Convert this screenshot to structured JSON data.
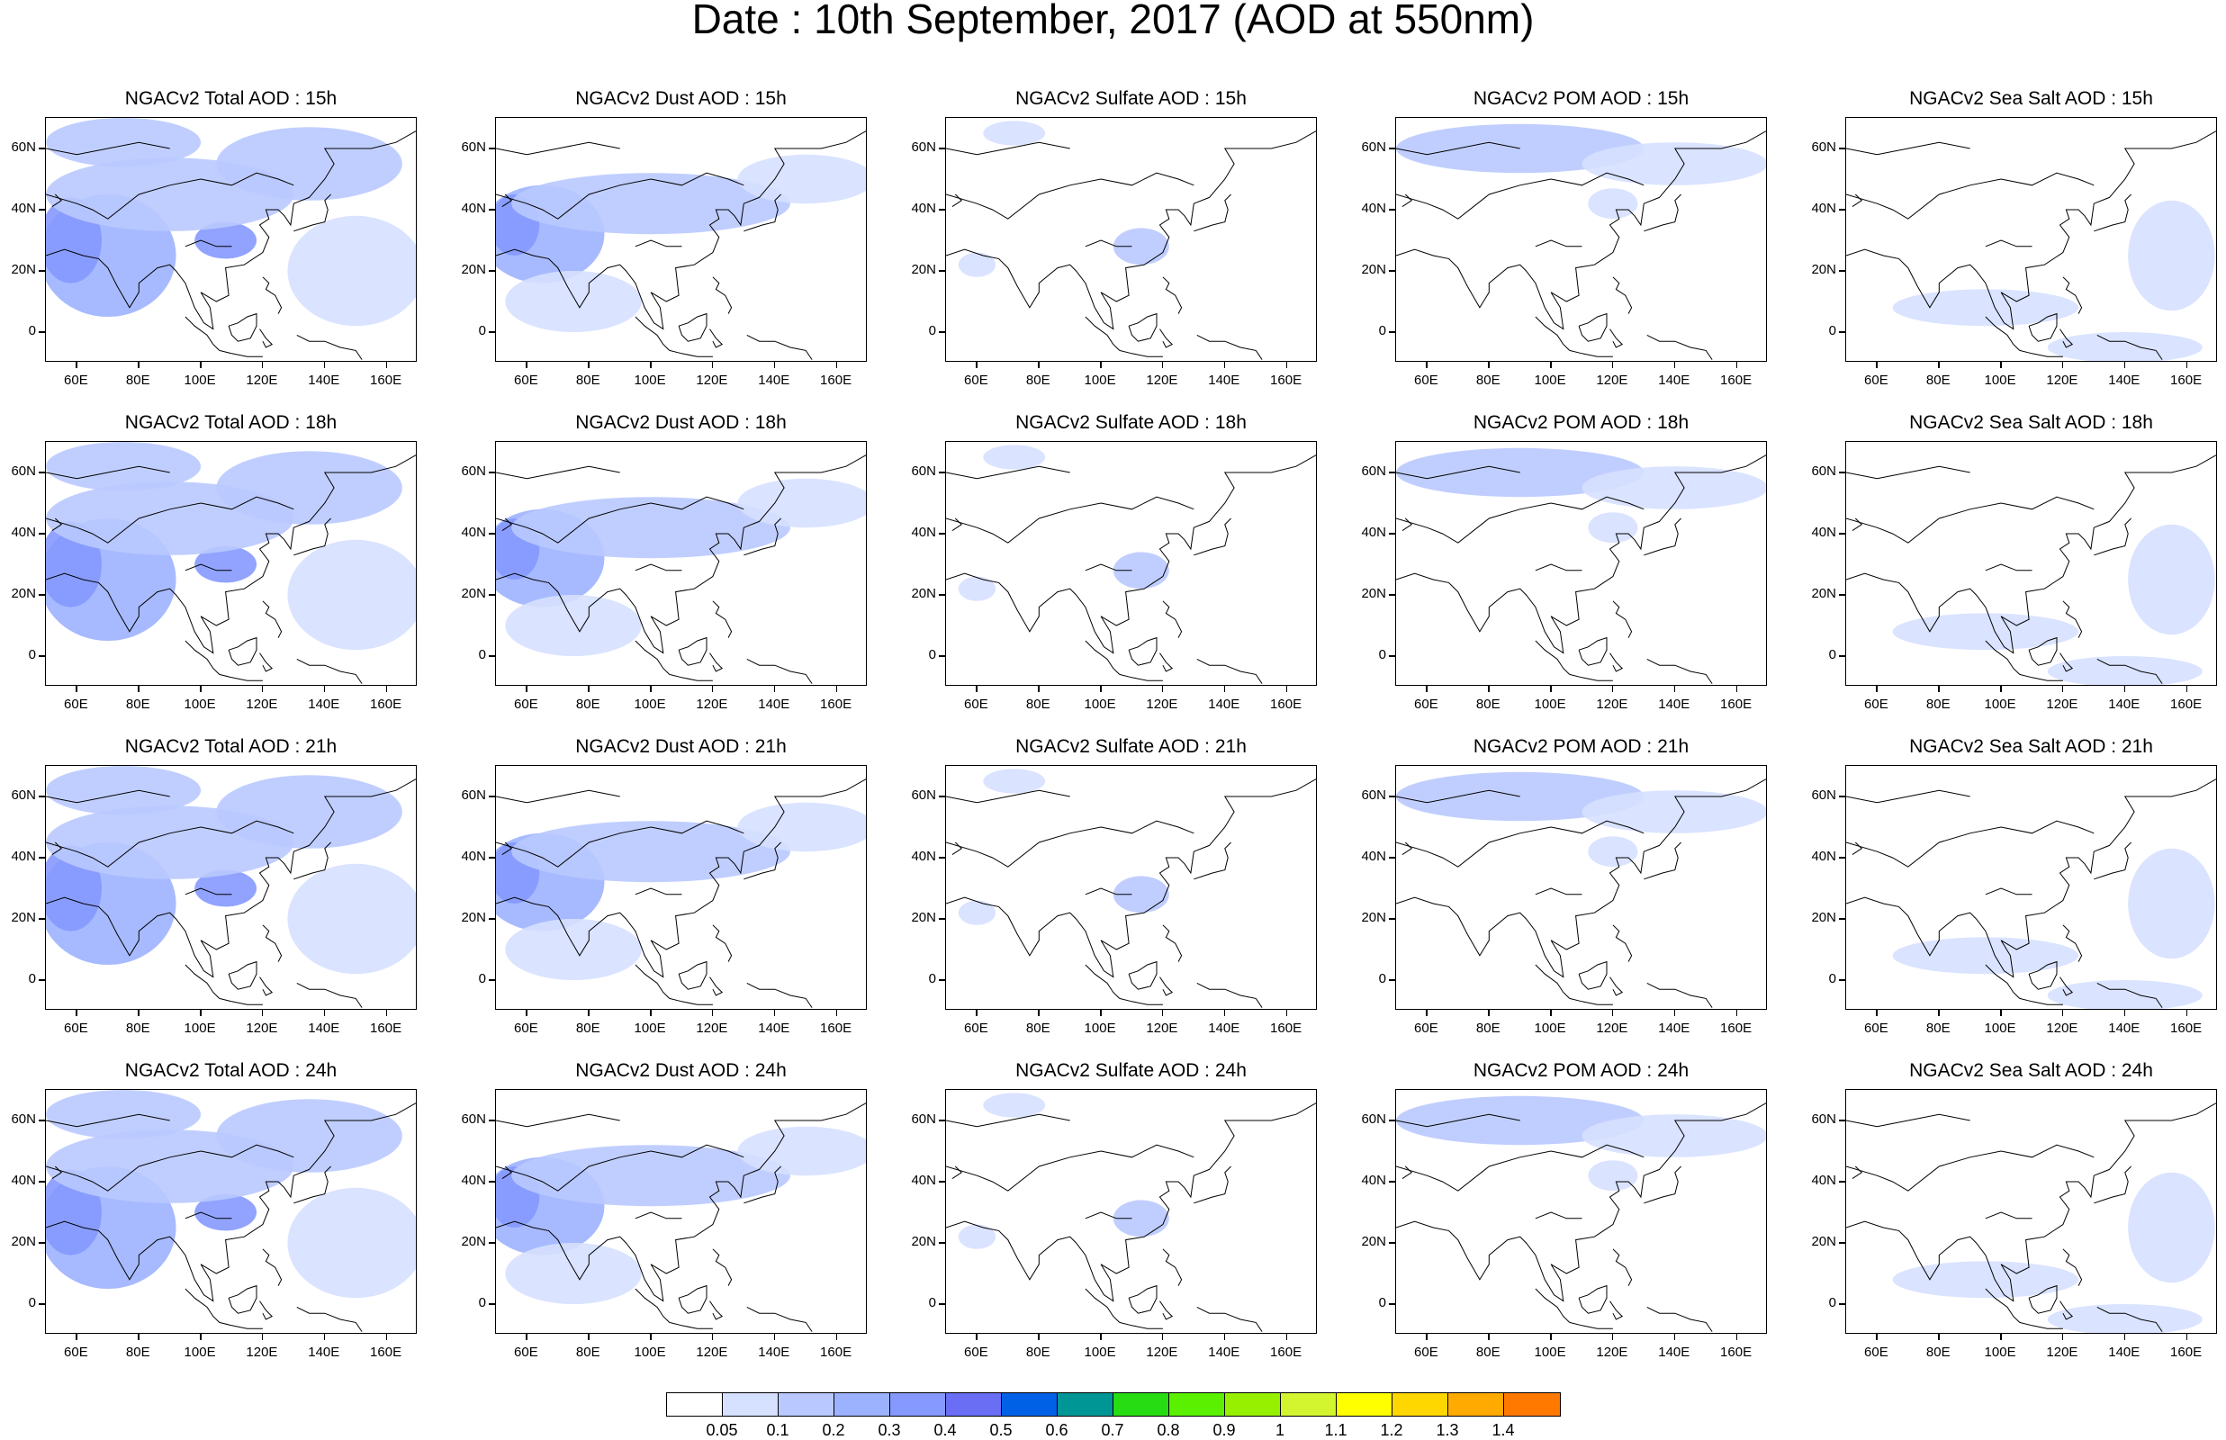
{
  "figure_title": "Date : 10th September, 2017 (AOD at 550nm)",
  "panel_titles": [
    [
      "NGACv2 Total AOD : 15h",
      "NGACv2 Dust AOD : 15h",
      "NGACv2 Sulfate AOD : 15h",
      "NGACv2 POM AOD : 15h",
      "NGACv2 Sea Salt AOD : 15h"
    ],
    [
      "NGACv2 Total AOD : 18h",
      "NGACv2 Dust AOD : 18h",
      "NGACv2 Sulfate AOD : 18h",
      "NGACv2 POM AOD : 18h",
      "NGACv2 Sea Salt AOD : 18h"
    ],
    [
      "NGACv2 Total AOD : 21h",
      "NGACv2 Dust AOD : 21h",
      "NGACv2 Sulfate AOD : 21h",
      "NGACv2 POM AOD : 21h",
      "NGACv2 Sea Salt AOD : 21h"
    ],
    [
      "NGACv2 Total AOD : 24h",
      "NGACv2 Dust AOD : 24h",
      "NGACv2 Sulfate AOD : 24h",
      "NGACv2 POM AOD : 24h",
      "NGACv2 Sea Salt  AOD : 24h"
    ]
  ],
  "map_extent": {
    "lon_min": 50,
    "lon_max": 170,
    "lat_min": -10,
    "lat_max": 70
  },
  "lat_labels": [
    "60N",
    "40N",
    "20N",
    "0"
  ],
  "lat_values": [
    60,
    40,
    20,
    0
  ],
  "lon_labels": [
    "60E",
    "80E",
    "100E",
    "120E",
    "140E",
    "160E"
  ],
  "lon_values": [
    60,
    80,
    100,
    120,
    140,
    160
  ],
  "colorbar": {
    "colors": [
      "#ffffff",
      "#d6e0ff",
      "#b9c9ff",
      "#9db2ff",
      "#8599ff",
      "#6a6ef5",
      "#0060e6",
      "#009696",
      "#28dc14",
      "#5af000",
      "#96f000",
      "#d2f530",
      "#ffff00",
      "#ffd700",
      "#ffaa00",
      "#ff7800",
      "#ff2a00"
    ],
    "labels": [
      "0.05",
      "0.1",
      "0.2",
      "0.3",
      "0.4",
      "0.5",
      "0.6",
      "0.7",
      "0.8",
      "0.9",
      "1",
      "1.1",
      "1.2",
      "1.3",
      "1.4"
    ]
  },
  "aerosol_fields": {
    "total": [
      {
        "lon": 70,
        "lat": 25,
        "rx": 22,
        "ry": 20,
        "level": 3
      },
      {
        "lon": 58,
        "lat": 30,
        "rx": 10,
        "ry": 14,
        "level": 4
      },
      {
        "lon": 108,
        "lat": 30,
        "rx": 10,
        "ry": 6,
        "level": 4
      },
      {
        "lon": 90,
        "lat": 45,
        "rx": 40,
        "ry": 12,
        "level": 2
      },
      {
        "lon": 135,
        "lat": 55,
        "rx": 30,
        "ry": 12,
        "level": 2
      },
      {
        "lon": 150,
        "lat": 20,
        "rx": 22,
        "ry": 18,
        "level": 1
      },
      {
        "lon": 75,
        "lat": 62,
        "rx": 25,
        "ry": 8,
        "level": 2
      }
    ],
    "dust": [
      {
        "lon": 65,
        "lat": 32,
        "rx": 20,
        "ry": 16,
        "level": 3
      },
      {
        "lon": 56,
        "lat": 35,
        "rx": 8,
        "ry": 10,
        "level": 4
      },
      {
        "lon": 100,
        "lat": 42,
        "rx": 45,
        "ry": 10,
        "level": 2
      },
      {
        "lon": 150,
        "lat": 50,
        "rx": 22,
        "ry": 8,
        "level": 1
      },
      {
        "lon": 75,
        "lat": 10,
        "rx": 22,
        "ry": 10,
        "level": 1
      }
    ],
    "sulfate": [
      {
        "lon": 113,
        "lat": 28,
        "rx": 9,
        "ry": 6,
        "level": 2
      },
      {
        "lon": 72,
        "lat": 65,
        "rx": 10,
        "ry": 4,
        "level": 1
      },
      {
        "lon": 60,
        "lat": 22,
        "rx": 6,
        "ry": 4,
        "level": 1
      }
    ],
    "pom": [
      {
        "lon": 90,
        "lat": 60,
        "rx": 40,
        "ry": 8,
        "level": 2
      },
      {
        "lon": 140,
        "lat": 55,
        "rx": 30,
        "ry": 7,
        "level": 1
      },
      {
        "lon": 120,
        "lat": 42,
        "rx": 8,
        "ry": 5,
        "level": 1
      }
    ],
    "seasalt": [
      {
        "lon": 95,
        "lat": 8,
        "rx": 30,
        "ry": 6,
        "level": 1
      },
      {
        "lon": 155,
        "lat": 25,
        "rx": 14,
        "ry": 18,
        "level": 1
      },
      {
        "lon": 140,
        "lat": -5,
        "rx": 25,
        "ry": 5,
        "level": 1
      }
    ]
  }
}
